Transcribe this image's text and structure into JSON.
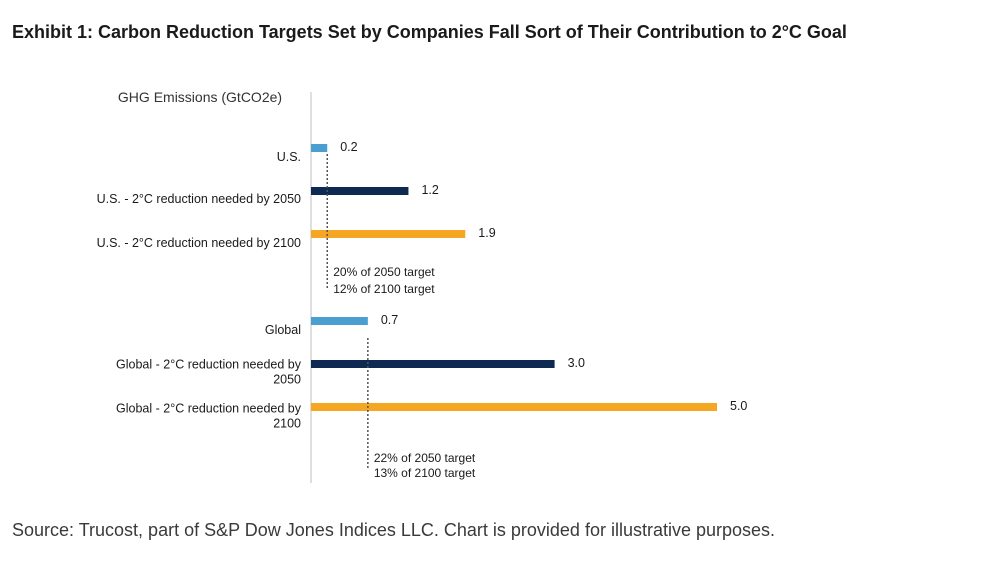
{
  "exhibit_title": "Exhibit 1: Carbon Reduction Targets Set by Companies Fall Sort of Their Contribution to 2°C Goal",
  "source_note": "Source: Trucost, part of S&P Dow Jones Indices LLC. Chart is provided for illustrative purposes.",
  "colors": {
    "current": "#4a9fd0",
    "by_2050": "#0e2a52",
    "by_2100": "#f5a623",
    "axis": "#bfbfbf",
    "dotted": "#555555"
  },
  "chart_data": {
    "type": "bar",
    "orientation": "horizontal",
    "title": "",
    "ylabel": "GHG Emissions (GtCO2e)",
    "xlim": [
      0,
      5.0
    ],
    "grid": false,
    "legend": "none",
    "groups": [
      {
        "name": "U.S.",
        "bars": [
          {
            "label_lines": [
              "U.S."
            ],
            "value": 0.2,
            "value_label": "0.2",
            "kind": "current"
          },
          {
            "label_lines": [
              "U.S. - 2°C reduction needed by 2050"
            ],
            "value": 1.2,
            "value_label": "1.2",
            "kind": "by_2050"
          },
          {
            "label_lines": [
              "U.S. - 2°C reduction needed by 2100"
            ],
            "value": 1.9,
            "value_label": "1.9",
            "kind": "by_2100"
          }
        ],
        "reference_value": 0.2,
        "annotation": [
          "20% of 2050 target",
          "12% of 2100 target"
        ]
      },
      {
        "name": "Global",
        "bars": [
          {
            "label_lines": [
              "Global"
            ],
            "value": 0.7,
            "value_label": "0.7",
            "kind": "current"
          },
          {
            "label_lines": [
              "Global - 2°C reduction needed by",
              "2050"
            ],
            "value": 3.0,
            "value_label": "3.0",
            "kind": "by_2050"
          },
          {
            "label_lines": [
              "Global - 2°C reduction needed by",
              "2100"
            ],
            "value": 5.0,
            "value_label": "5.0",
            "kind": "by_2100"
          }
        ],
        "reference_value": 0.7,
        "annotation": [
          "22% of 2050 target",
          "13% of 2100 target"
        ]
      }
    ]
  }
}
